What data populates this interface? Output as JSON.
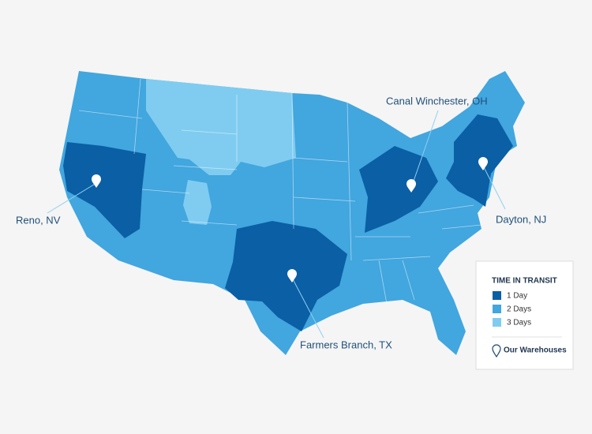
{
  "map": {
    "warehouses": [
      {
        "label": "Reno, NV"
      },
      {
        "label": "Canal Winchester, OH"
      },
      {
        "label": "Dayton, NJ"
      },
      {
        "label": "Farmers Branch, TX"
      }
    ],
    "legend": {
      "title": "TIME IN TRANSIT",
      "items": [
        {
          "label": "1 Day",
          "color": "#0a5fa5"
        },
        {
          "label": "2 Days",
          "color": "#42a6df"
        },
        {
          "label": "3 Days",
          "color": "#80ccf1"
        }
      ],
      "warehouses_label": "Our Warehouses"
    }
  }
}
